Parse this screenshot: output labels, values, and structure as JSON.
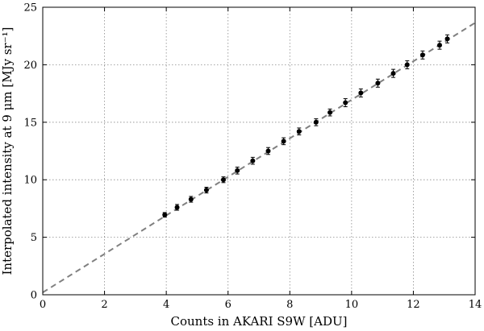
{
  "chart_data": {
    "type": "scatter",
    "xlabel": "Counts in AKARI S9W [ADU]",
    "ylabel": "Interpolated intensity at 9 μm [MJy sr⁻¹]",
    "xlim": [
      0,
      14
    ],
    "ylim": [
      0,
      25
    ],
    "xticks": [
      0,
      2,
      4,
      6,
      8,
      10,
      12,
      14
    ],
    "yticks": [
      0,
      5,
      10,
      15,
      20,
      25
    ],
    "grid": true,
    "grid_style": "dotted",
    "series": [
      {
        "marker": "circle",
        "color": "#000000",
        "x": [
          3.95,
          4.35,
          4.8,
          5.3,
          5.85,
          6.3,
          6.8,
          7.3,
          7.8,
          8.3,
          8.85,
          9.3,
          9.8,
          10.3,
          10.85,
          11.35,
          11.8,
          12.3,
          12.85,
          13.1
        ],
        "y": [
          6.95,
          7.6,
          8.3,
          9.1,
          10.0,
          10.8,
          11.65,
          12.5,
          13.35,
          14.2,
          15.0,
          15.85,
          16.7,
          17.55,
          18.4,
          19.25,
          20.0,
          20.85,
          21.7,
          22.25
        ],
        "yerr": [
          0.2,
          0.25,
          0.25,
          0.25,
          0.25,
          0.3,
          0.3,
          0.3,
          0.3,
          0.3,
          0.3,
          0.3,
          0.35,
          0.35,
          0.35,
          0.35,
          0.35,
          0.35,
          0.35,
          0.35
        ]
      }
    ],
    "fit_line": {
      "style": "dashed",
      "color": "#808080",
      "x": [
        0,
        14
      ],
      "y": [
        0.2,
        23.65
      ]
    }
  }
}
